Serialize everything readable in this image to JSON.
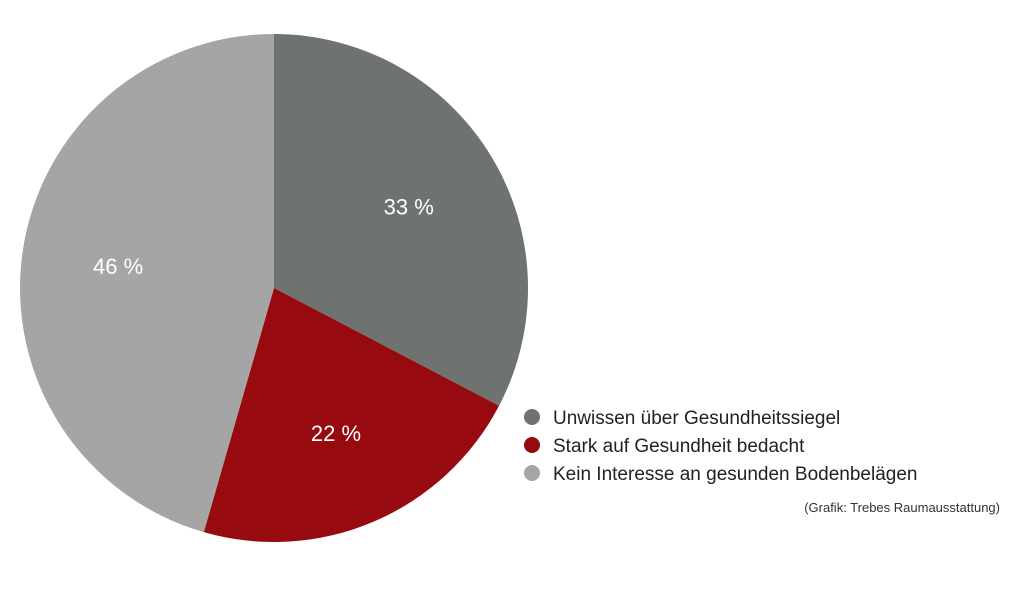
{
  "chart_data": {
    "type": "pie",
    "categories": [
      "Unwissen über Gesundheitssiegel",
      "Stark auf Gesundheit bedacht",
      "Kein Interesse an gesunden Bodenbelägen"
    ],
    "values": [
      33,
      22,
      46
    ],
    "value_labels": [
      "33 %",
      "22 %",
      "46 %"
    ],
    "colors": [
      "#6e7370",
      "#960a10",
      "#a5a5a5"
    ],
    "start_angle_deg": 0,
    "direction": "clockwise",
    "legend_position": "bottom-right",
    "source_note": "(Grafik: Trebes Raumausstattung)"
  }
}
